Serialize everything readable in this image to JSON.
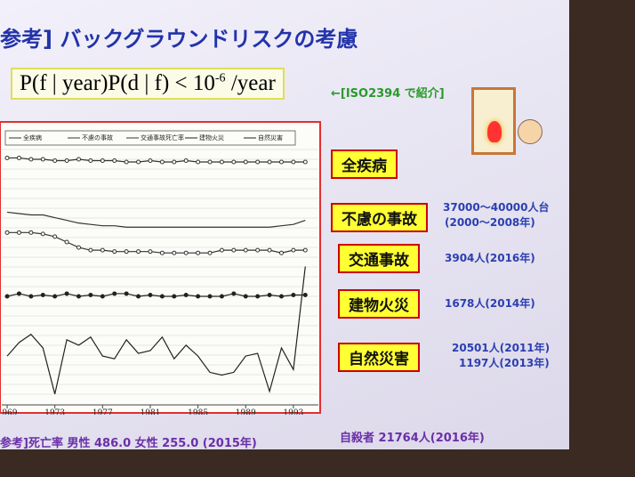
{
  "slide": {
    "title": "参考] バックグラウンドリスクの考慮",
    "formula": {
      "base": "P(f | year)P(d | f) < 10",
      "exponent": "-6",
      "unit": "/year"
    },
    "reference": "←[ISO2394 で紹介]",
    "labels": [
      "全疾病",
      "不慮の事故",
      "交通事故",
      "建物火災",
      "自然災害"
    ],
    "notes": [
      "37000～40000人台",
      "(2000～2008年)",
      "3904人(2016年)",
      "1678人(2014年)",
      "20501人(2011年)",
      "1197人(2013年)"
    ],
    "footer": {
      "left": "参考]死亡率 男性 486.0 女性 255.0 (2015年)",
      "right": "自殺者 21764人(2016年)"
    }
  },
  "chart_data": {
    "type": "line",
    "x": [
      1969,
      1970,
      1971,
      1972,
      1973,
      1974,
      1975,
      1976,
      1977,
      1978,
      1979,
      1980,
      1981,
      1982,
      1983,
      1984,
      1985,
      1986,
      1987,
      1988,
      1989,
      1990,
      1991,
      1992,
      1993,
      1994
    ],
    "xlim": [
      1968.4,
      1994.5
    ],
    "xticks": [
      1969,
      1973,
      1977,
      1981,
      1985,
      1989,
      1993
    ],
    "ylim": [
      0,
      100
    ],
    "series": [
      {
        "name": "全疾病",
        "color": "#333333",
        "marker": "open",
        "values": [
          91,
          91,
          90.5,
          90.5,
          90,
          90,
          90.5,
          90,
          90,
          90,
          89.5,
          89.5,
          90,
          89.5,
          89.5,
          90,
          89.5,
          89.5,
          89.5,
          89.5,
          89.5,
          89.5,
          89.5,
          89.5,
          89.5,
          89.5
        ]
      },
      {
        "name": "不慮の事故",
        "color": "#333333",
        "marker": "none",
        "values": [
          71,
          70.5,
          70,
          70,
          69,
          68,
          67,
          66.5,
          66,
          66,
          65.5,
          65.5,
          65.5,
          65.5,
          65.5,
          65.5,
          65.5,
          65.5,
          65.5,
          65.5,
          65.5,
          65.5,
          65.5,
          66,
          66.5,
          68
        ]
      },
      {
        "name": "交通事故死亡率",
        "color": "#333333",
        "marker": "open",
        "values": [
          63.5,
          63.5,
          63.5,
          63,
          62,
          60,
          58,
          57,
          57,
          56.5,
          56.5,
          56.5,
          56.5,
          56,
          56,
          56,
          56,
          56,
          57,
          57,
          57,
          57,
          57,
          56,
          57,
          57
        ]
      },
      {
        "name": "建物火災",
        "color": "#222222",
        "marker": "filled",
        "values": [
          40,
          41,
          40,
          40.5,
          40,
          41,
          40,
          40.5,
          40,
          41,
          41,
          40,
          40.5,
          40,
          40,
          40.5,
          40,
          40,
          40,
          41,
          40,
          40,
          40.5,
          40,
          40.5,
          40.5
        ]
      },
      {
        "name": "自然災害",
        "color": "#222222",
        "marker": "none",
        "values": [
          18,
          23,
          26,
          21,
          4,
          24,
          22,
          25,
          18,
          17,
          24,
          19,
          20,
          25,
          17,
          22,
          18,
          12,
          11,
          12,
          18,
          19,
          5,
          21,
          13,
          51
        ]
      }
    ]
  }
}
